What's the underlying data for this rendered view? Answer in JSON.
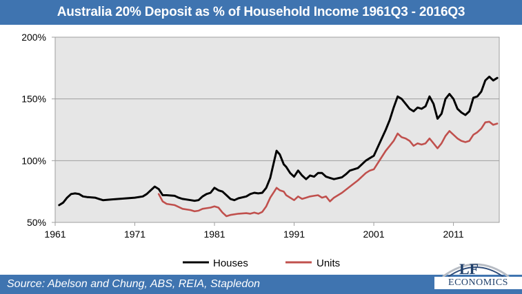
{
  "header": {
    "title": "Australia 20% Deposit as % of Household Income 1961Q3  - 2016Q3"
  },
  "footer": {
    "source": "Source:  Abelson and Chung, ABS, REIA, Stapledon"
  },
  "logo": {
    "monogram": "LF",
    "word": "ECONOMICS"
  },
  "colors": {
    "houses": "#000000",
    "units": "#c0504d",
    "plot_bg": "#e6e6e6",
    "bars": "#3f74b0"
  },
  "chart_data": {
    "type": "line",
    "title": "Australia 20% Deposit as % of Household Income 1961Q3  - 2016Q3",
    "xlabel": "",
    "ylabel": "",
    "xlim": [
      1961,
      2016.75
    ],
    "ylim": [
      50,
      200
    ],
    "x_ticks": [
      1961,
      1971,
      1981,
      1991,
      2001,
      2011
    ],
    "y_ticks": [
      50,
      100,
      150,
      200
    ],
    "y_tick_labels": [
      "50%",
      "100%",
      "150%",
      "200%"
    ],
    "legend_position": "bottom-center",
    "series": [
      {
        "name": "Houses",
        "color": "#000000",
        "points": [
          [
            1961.5,
            64
          ],
          [
            1962,
            66
          ],
          [
            1962.5,
            70
          ],
          [
            1963,
            73
          ],
          [
            1963.5,
            73.5
          ],
          [
            1964,
            73
          ],
          [
            1964.5,
            71
          ],
          [
            1965,
            70.5
          ],
          [
            1966,
            70
          ],
          [
            1966.5,
            69
          ],
          [
            1967,
            68
          ],
          [
            1968,
            68.5
          ],
          [
            1969,
            69
          ],
          [
            1970,
            69.5
          ],
          [
            1971,
            70
          ],
          [
            1972,
            71
          ],
          [
            1972.5,
            73
          ],
          [
            1973,
            76
          ],
          [
            1973.5,
            79
          ],
          [
            1974,
            77
          ],
          [
            1974.5,
            72
          ],
          [
            1975,
            72
          ],
          [
            1976,
            71.5
          ],
          [
            1976.5,
            70
          ],
          [
            1977,
            69
          ],
          [
            1978,
            68
          ],
          [
            1978.5,
            67.5
          ],
          [
            1979,
            68
          ],
          [
            1979.5,
            71
          ],
          [
            1980,
            73
          ],
          [
            1980.5,
            74
          ],
          [
            1981,
            78
          ],
          [
            1981.5,
            76
          ],
          [
            1982,
            75
          ],
          [
            1982.5,
            72
          ],
          [
            1983,
            69
          ],
          [
            1983.5,
            68
          ],
          [
            1984,
            69.5
          ],
          [
            1985,
            71
          ],
          [
            1985.5,
            73
          ],
          [
            1986,
            74
          ],
          [
            1986.5,
            73.5
          ],
          [
            1987,
            74
          ],
          [
            1987.5,
            78
          ],
          [
            1988,
            86
          ],
          [
            1988.5,
            100
          ],
          [
            1988.8,
            108
          ],
          [
            1989.2,
            105
          ],
          [
            1989.7,
            97
          ],
          [
            1990,
            95
          ],
          [
            1990.5,
            90
          ],
          [
            1991,
            87
          ],
          [
            1991.5,
            92
          ],
          [
            1992,
            88
          ],
          [
            1992.5,
            85
          ],
          [
            1993,
            88
          ],
          [
            1993.5,
            87
          ],
          [
            1994,
            90
          ],
          [
            1994.5,
            90
          ],
          [
            1995,
            87
          ],
          [
            1995.5,
            86
          ],
          [
            1996,
            85
          ],
          [
            1997,
            86.5
          ],
          [
            1997.5,
            89
          ],
          [
            1998,
            92
          ],
          [
            1999,
            94
          ],
          [
            2000,
            100
          ],
          [
            2000.5,
            102
          ],
          [
            2001,
            104
          ],
          [
            2002,
            118
          ],
          [
            2002.5,
            125
          ],
          [
            2003,
            133
          ],
          [
            2003.5,
            143
          ],
          [
            2004,
            152
          ],
          [
            2004.5,
            150
          ],
          [
            2005,
            146
          ],
          [
            2005.5,
            142
          ],
          [
            2006,
            140
          ],
          [
            2006.5,
            143
          ],
          [
            2007,
            142
          ],
          [
            2007.5,
            144
          ],
          [
            2008,
            152
          ],
          [
            2008.5,
            146
          ],
          [
            2009,
            134
          ],
          [
            2009.5,
            138
          ],
          [
            2010,
            150
          ],
          [
            2010.5,
            154
          ],
          [
            2011,
            150
          ],
          [
            2011.5,
            142
          ],
          [
            2012,
            139
          ],
          [
            2012.5,
            137
          ],
          [
            2013,
            140
          ],
          [
            2013.5,
            151
          ],
          [
            2014,
            152
          ],
          [
            2014.5,
            156
          ],
          [
            2015,
            165
          ],
          [
            2015.5,
            168
          ],
          [
            2016,
            165
          ],
          [
            2016.5,
            167
          ]
        ]
      },
      {
        "name": "Units",
        "color": "#c0504d",
        "points": [
          [
            1974,
            73
          ],
          [
            1974.5,
            67
          ],
          [
            1975,
            65
          ],
          [
            1976,
            64
          ],
          [
            1976.5,
            62.5
          ],
          [
            1977,
            61
          ],
          [
            1978,
            60
          ],
          [
            1978.5,
            59
          ],
          [
            1979,
            59.5
          ],
          [
            1979.5,
            61
          ],
          [
            1980,
            61.5
          ],
          [
            1980.5,
            62
          ],
          [
            1981,
            63
          ],
          [
            1981.5,
            62
          ],
          [
            1982,
            58
          ],
          [
            1982.5,
            55
          ],
          [
            1983,
            56
          ],
          [
            1984,
            57
          ],
          [
            1985,
            57.5
          ],
          [
            1985.5,
            57
          ],
          [
            1986,
            58
          ],
          [
            1986.5,
            57
          ],
          [
            1987,
            58.5
          ],
          [
            1987.5,
            63
          ],
          [
            1988,
            70
          ],
          [
            1988.5,
            75
          ],
          [
            1988.8,
            78
          ],
          [
            1989.2,
            76
          ],
          [
            1989.7,
            75
          ],
          [
            1990,
            72
          ],
          [
            1990.5,
            70
          ],
          [
            1991,
            68
          ],
          [
            1991.5,
            71
          ],
          [
            1992,
            69
          ],
          [
            1992.5,
            70
          ],
          [
            1993,
            71
          ],
          [
            1993.5,
            71.5
          ],
          [
            1994,
            72
          ],
          [
            1994.5,
            70
          ],
          [
            1995,
            71
          ],
          [
            1995.5,
            67
          ],
          [
            1996,
            70
          ],
          [
            1997,
            74
          ],
          [
            1998,
            79
          ],
          [
            1999,
            84
          ],
          [
            2000,
            90
          ],
          [
            2000.5,
            92
          ],
          [
            2001,
            93
          ],
          [
            2002,
            103
          ],
          [
            2002.5,
            108
          ],
          [
            2003,
            112
          ],
          [
            2003.5,
            116
          ],
          [
            2004,
            122
          ],
          [
            2004.5,
            119
          ],
          [
            2005,
            118
          ],
          [
            2005.5,
            116
          ],
          [
            2006,
            112
          ],
          [
            2006.5,
            114
          ],
          [
            2007,
            113
          ],
          [
            2007.5,
            114
          ],
          [
            2008,
            118
          ],
          [
            2008.5,
            114
          ],
          [
            2009,
            110
          ],
          [
            2009.5,
            114
          ],
          [
            2010,
            120
          ],
          [
            2010.5,
            124
          ],
          [
            2011,
            121
          ],
          [
            2011.5,
            118
          ],
          [
            2012,
            116
          ],
          [
            2012.5,
            115
          ],
          [
            2013,
            116
          ],
          [
            2013.5,
            121
          ],
          [
            2014,
            123
          ],
          [
            2014.5,
            126
          ],
          [
            2015,
            131
          ],
          [
            2015.5,
            131.5
          ],
          [
            2016,
            129
          ],
          [
            2016.5,
            130
          ]
        ]
      }
    ]
  }
}
